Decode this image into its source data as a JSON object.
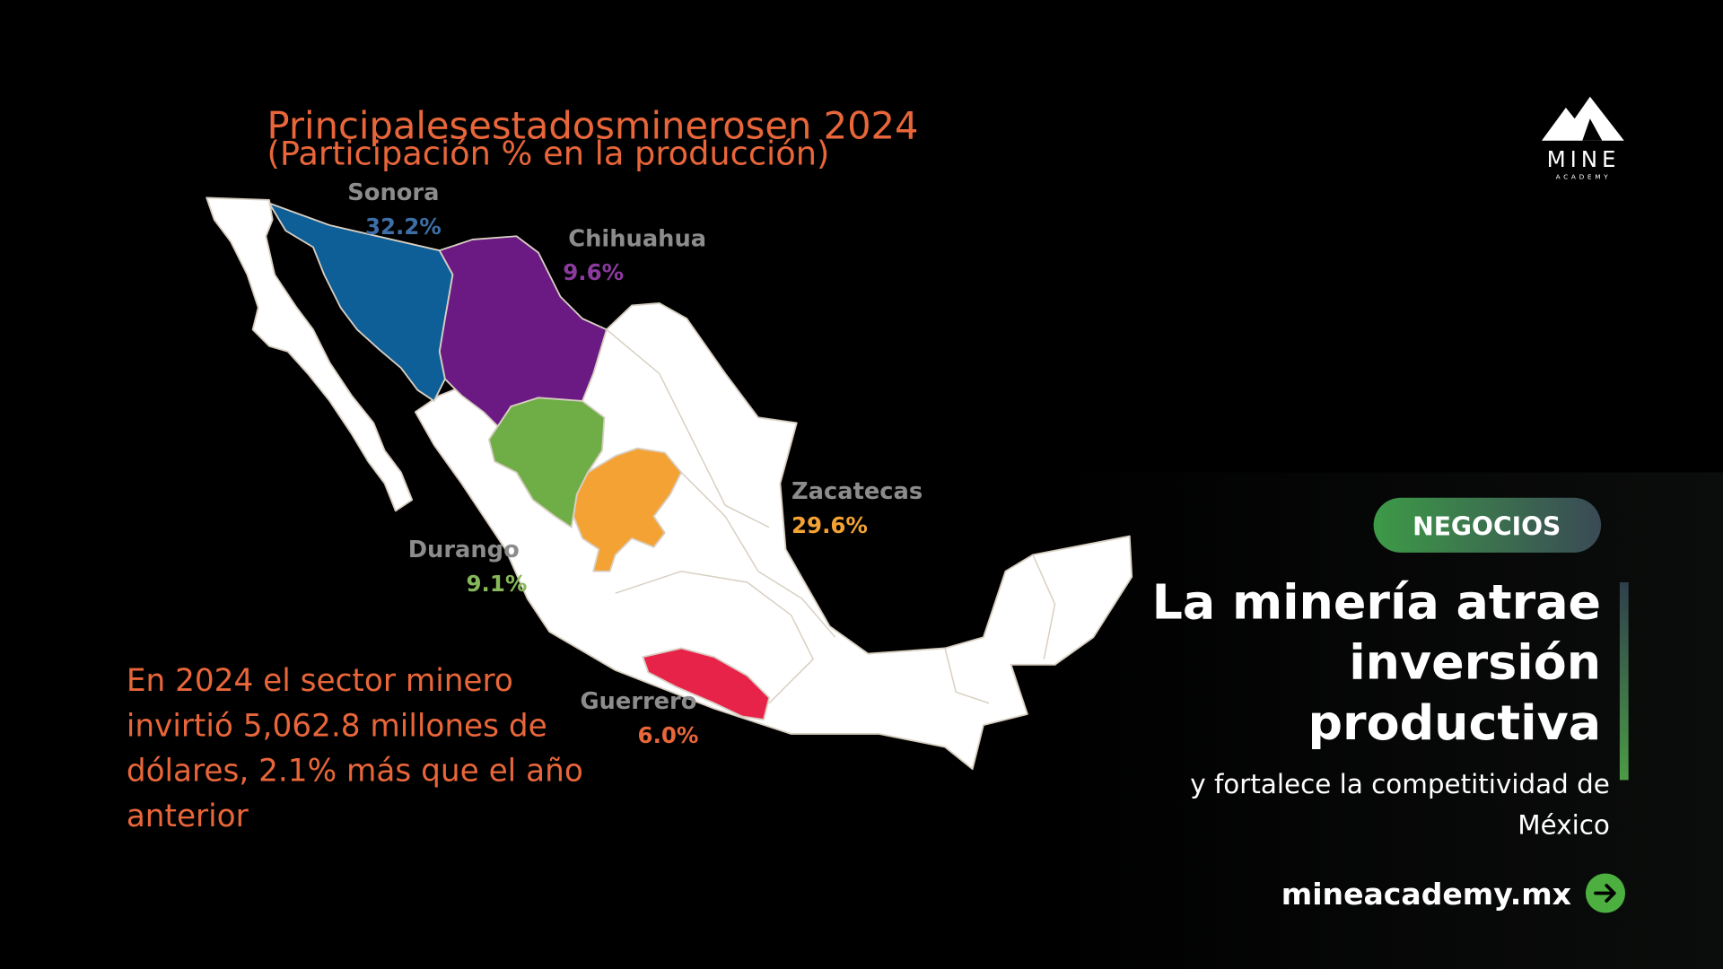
{
  "header": {
    "title": "Principalesestadosminerosen 2024",
    "subtitle": "(Participación % en la producción)"
  },
  "logo": {
    "name": "MINE",
    "tagline": "ACADEMY"
  },
  "map": {
    "states": [
      {
        "name": "Sonora",
        "share": "32.2%"
      },
      {
        "name": "Chihuahua",
        "share": "9.6%"
      },
      {
        "name": "Zacatecas",
        "share": "29.6%"
      },
      {
        "name": "Durango",
        "share": "9.1%"
      },
      {
        "name": "Guerrero",
        "share": "6.0%"
      }
    ]
  },
  "note": {
    "lines": [
      "En 2024 el sector minero",
      "invirtió 5,062.8 millones de",
      "dólares, 2.1% más que el año",
      "anterior"
    ]
  },
  "article": {
    "tag": "NEGOCIOS",
    "headline": [
      "La minería atrae",
      "inversión",
      "productiva"
    ],
    "subtitle": [
      "y fortalece la competitividad de",
      "México"
    ],
    "link": "mineacademy.mx"
  }
}
